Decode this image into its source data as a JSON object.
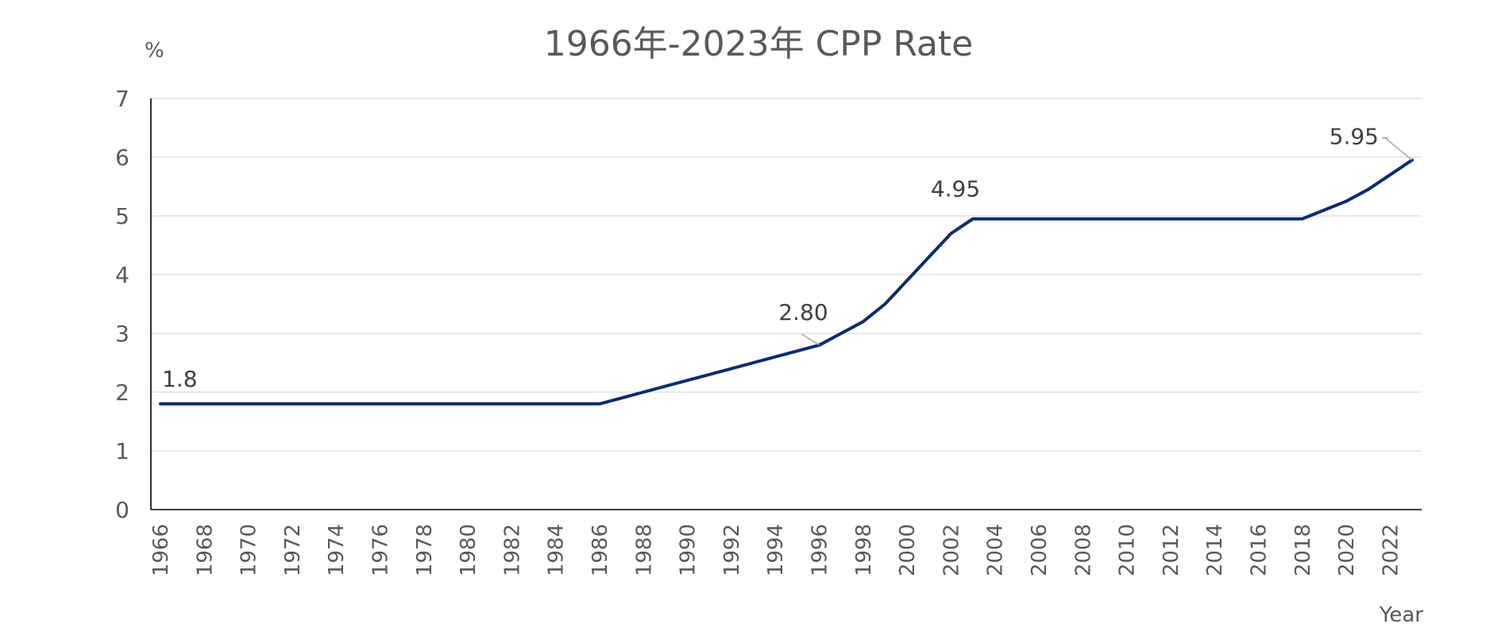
{
  "chart_data": {
    "type": "line",
    "title": "1966年-2023年 CPP Rate",
    "ylabel": "%",
    "xlabel": "Year",
    "ylim": [
      0,
      7
    ],
    "yticks": [
      "0",
      "1",
      "2",
      "3",
      "4",
      "5",
      "6",
      "7"
    ],
    "xticks": [
      "1966",
      "1968",
      "1970",
      "1972",
      "1974",
      "1976",
      "1978",
      "1980",
      "1982",
      "1984",
      "1986",
      "1988",
      "1990",
      "1992",
      "1994",
      "1996",
      "1998",
      "2000",
      "2002",
      "2004",
      "2006",
      "2008",
      "2010",
      "2012",
      "2014",
      "2016",
      "2018",
      "2020",
      "2022"
    ],
    "grid": true,
    "legend": "none",
    "line_color": "#0b2d6b",
    "x": [
      1966,
      1967,
      1968,
      1969,
      1970,
      1971,
      1972,
      1973,
      1974,
      1975,
      1976,
      1977,
      1978,
      1979,
      1980,
      1981,
      1982,
      1983,
      1984,
      1985,
      1986,
      1987,
      1988,
      1989,
      1990,
      1991,
      1992,
      1993,
      1994,
      1995,
      1996,
      1997,
      1998,
      1999,
      2000,
      2001,
      2002,
      2003,
      2004,
      2005,
      2006,
      2007,
      2008,
      2009,
      2010,
      2011,
      2012,
      2013,
      2014,
      2015,
      2016,
      2017,
      2018,
      2019,
      2020,
      2021,
      2022,
      2023
    ],
    "series": [
      {
        "values": [
          1.8,
          1.8,
          1.8,
          1.8,
          1.8,
          1.8,
          1.8,
          1.8,
          1.8,
          1.8,
          1.8,
          1.8,
          1.8,
          1.8,
          1.8,
          1.8,
          1.8,
          1.8,
          1.8,
          1.8,
          1.8,
          1.9,
          2.0,
          2.1,
          2.2,
          2.3,
          2.4,
          2.5,
          2.6,
          2.7,
          2.8,
          3.0,
          3.2,
          3.5,
          3.9,
          4.3,
          4.7,
          4.95,
          4.95,
          4.95,
          4.95,
          4.95,
          4.95,
          4.95,
          4.95,
          4.95,
          4.95,
          4.95,
          4.95,
          4.95,
          4.95,
          4.95,
          4.95,
          5.1,
          5.25,
          5.45,
          5.7,
          5.95
        ]
      }
    ],
    "annotations": [
      {
        "x": 1966,
        "y": 1.8,
        "text": "1.8"
      },
      {
        "x": 1996,
        "y": 2.8,
        "text": "2.80"
      },
      {
        "x": 2003,
        "y": 4.95,
        "text": "4.95"
      },
      {
        "x": 2023,
        "y": 5.95,
        "text": "5.95"
      }
    ]
  }
}
